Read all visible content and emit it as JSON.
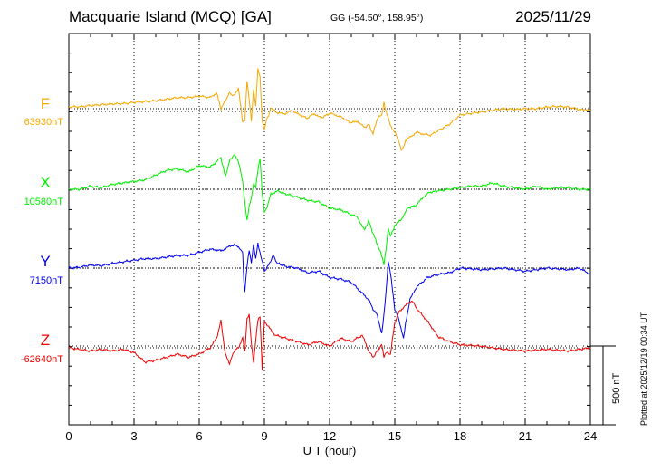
{
  "header": {
    "station": "Macquarie Island (MCQ)  [GA]",
    "coords": "GG (-54.50°, 158.95°)",
    "date": "2025/11/29"
  },
  "footer": {
    "plotted": "Plotted at 2025/12/19 00:34 UT"
  },
  "chart_data": {
    "type": "line",
    "xlabel": "U T (hour)",
    "xlim": [
      0,
      24
    ],
    "xticks": [
      0,
      3,
      6,
      9,
      12,
      15,
      18,
      21,
      24
    ],
    "scale_bar_label": "500 nT",
    "scale_bar_nT": 500,
    "grid": true,
    "series": [
      {
        "name": "F",
        "baseline_label": "63930nT",
        "color": "#f5a800",
        "x": [
          0,
          0.5,
          1,
          1.5,
          2,
          2.5,
          3,
          3.5,
          4,
          4.5,
          5,
          5.5,
          6,
          6.5,
          6.8,
          7,
          7.2,
          7.4,
          7.6,
          7.8,
          8,
          8.1,
          8.2,
          8.3,
          8.4,
          8.5,
          8.6,
          8.7,
          8.8,
          8.9,
          9,
          9.1,
          9.2,
          9.3,
          9.5,
          9.7,
          10,
          10.3,
          10.6,
          11,
          11.3,
          11.6,
          12,
          12.3,
          12.6,
          13,
          13.3,
          13.6,
          13.8,
          14,
          14.2,
          14.4,
          14.5,
          14.6,
          14.7,
          14.8,
          15,
          15.2,
          15.3,
          15.4,
          15.5,
          15.7,
          16,
          16.3,
          16.6,
          17,
          17.5,
          18,
          18.5,
          19,
          19.5,
          20,
          20.5,
          21,
          21.5,
          22,
          22.5,
          23,
          23.5,
          24
        ],
        "values": [
          12,
          12,
          20,
          25,
          30,
          32,
          40,
          45,
          50,
          60,
          70,
          70,
          80,
          70,
          100,
          0,
          50,
          100,
          80,
          130,
          -80,
          -70,
          180,
          60,
          -80,
          120,
          10,
          250,
          200,
          -80,
          -130,
          -60,
          -40,
          10,
          -20,
          -30,
          -30,
          -10,
          -40,
          -60,
          -30,
          -60,
          -30,
          -40,
          -60,
          -90,
          -80,
          -120,
          -100,
          -160,
          -60,
          -40,
          40,
          -20,
          -60,
          -110,
          -150,
          -210,
          -260,
          -240,
          -200,
          -180,
          -150,
          -160,
          -170,
          -140,
          -100,
          -40,
          -30,
          -20,
          -10,
          0,
          -5,
          0,
          0,
          10,
          15,
          10,
          -5,
          -10
        ]
      },
      {
        "name": "X",
        "baseline_label": "10580nT",
        "color": "#00ee00",
        "x": [
          0,
          0.5,
          1,
          1.5,
          2,
          2.5,
          3,
          3.5,
          4,
          4.5,
          5,
          5.5,
          6,
          6.5,
          7,
          7.2,
          7.4,
          7.6,
          7.8,
          8,
          8.1,
          8.2,
          8.3,
          8.4,
          8.5,
          8.6,
          8.7,
          8.8,
          8.9,
          9,
          9.1,
          9.3,
          9.6,
          10,
          10.5,
          11,
          11.5,
          12,
          12.5,
          13,
          13.3,
          13.6,
          13.8,
          14,
          14.2,
          14.4,
          14.5,
          14.6,
          14.7,
          14.8,
          15,
          15.3,
          15.6,
          16,
          16.3,
          16.6,
          17,
          17.5,
          18,
          18.5,
          19,
          19.5,
          20,
          20.5,
          21,
          21.5,
          22,
          22.5,
          23,
          23.5,
          24
        ],
        "values": [
          0,
          0,
          20,
          10,
          30,
          40,
          50,
          60,
          90,
          120,
          130,
          110,
          150,
          140,
          200,
          80,
          180,
          220,
          180,
          50,
          -80,
          -200,
          -110,
          -60,
          30,
          10,
          120,
          200,
          -20,
          -140,
          -120,
          -30,
          -10,
          -30,
          -50,
          -70,
          -80,
          -120,
          -130,
          -160,
          -180,
          -260,
          -200,
          -280,
          -350,
          -420,
          -480,
          -380,
          -250,
          -300,
          -230,
          -190,
          -120,
          -100,
          -50,
          -20,
          -10,
          0,
          10,
          20,
          20,
          40,
          20,
          10,
          0,
          20,
          0,
          10,
          10,
          0,
          0
        ]
      },
      {
        "name": "Y",
        "baseline_label": "7150nT",
        "color": "#0000ee",
        "x": [
          0,
          0.5,
          1,
          1.5,
          2,
          2.5,
          3,
          3.5,
          4,
          4.5,
          5,
          5.5,
          6,
          6.5,
          7,
          7.3,
          7.6,
          7.9,
          8,
          8.05,
          8.1,
          8.2,
          8.3,
          8.4,
          8.5,
          8.6,
          8.7,
          8.8,
          9,
          9.2,
          9.4,
          9.6,
          10,
          10.5,
          11,
          11.5,
          12,
          12.5,
          13,
          13.5,
          13.8,
          14,
          14.2,
          14.4,
          14.5,
          14.6,
          14.7,
          14.8,
          15,
          15.2,
          15.4,
          15.5,
          15.7,
          16,
          16.5,
          17,
          17.5,
          18,
          19,
          20,
          21,
          22,
          23,
          23.5,
          24
        ],
        "values": [
          0,
          5,
          20,
          15,
          30,
          40,
          50,
          60,
          60,
          70,
          80,
          80,
          100,
          120,
          110,
          130,
          150,
          120,
          100,
          -80,
          -150,
          10,
          110,
          30,
          150,
          60,
          160,
          100,
          -20,
          20,
          80,
          30,
          10,
          0,
          -30,
          -20,
          -60,
          -70,
          -90,
          -160,
          -200,
          -260,
          -300,
          -420,
          -300,
          -150,
          40,
          -30,
          -260,
          -330,
          -450,
          -350,
          -200,
          -120,
          -60,
          -40,
          -30,
          0,
          -10,
          0,
          -20,
          0,
          -10,
          0,
          -40
        ]
      },
      {
        "name": "Z",
        "baseline_label": "-62640nT",
        "color": "#ee0000",
        "x": [
          0,
          0.5,
          1,
          1.5,
          2,
          2.5,
          3,
          3.5,
          4,
          4.5,
          5,
          5.5,
          6,
          6.5,
          6.8,
          7,
          7.2,
          7.4,
          7.6,
          7.8,
          8,
          8.1,
          8.2,
          8.3,
          8.4,
          8.5,
          8.6,
          8.7,
          8.8,
          8.9,
          9,
          9.2,
          9.5,
          10,
          10.5,
          11,
          11.5,
          12,
          12.5,
          13,
          13.5,
          13.8,
          14,
          14.2,
          14.4,
          14.5,
          14.6,
          14.8,
          15,
          15.2,
          15.5,
          15.8,
          16,
          16.5,
          17,
          17.5,
          18,
          19,
          20,
          21,
          22,
          23,
          24
        ],
        "values": [
          0,
          -10,
          -20,
          -10,
          -20,
          -10,
          -30,
          -90,
          -80,
          -60,
          -40,
          -60,
          -40,
          0,
          60,
          170,
          -40,
          -100,
          -20,
          0,
          60,
          -30,
          180,
          210,
          30,
          -90,
          50,
          180,
          200,
          -140,
          170,
          130,
          80,
          60,
          40,
          20,
          40,
          10,
          60,
          40,
          80,
          -20,
          -60,
          -20,
          20,
          -60,
          -30,
          -40,
          160,
          230,
          270,
          300,
          250,
          170,
          70,
          40,
          20,
          10,
          -10,
          -20,
          -10,
          -20,
          0
        ]
      }
    ]
  }
}
